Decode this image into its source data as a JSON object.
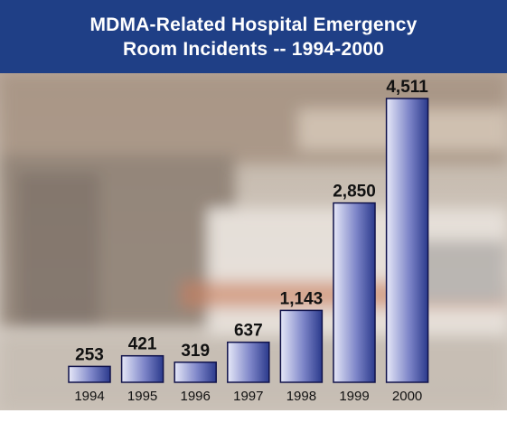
{
  "header": {
    "title_line1": "MDMA-Related Hospital Emergency",
    "title_line2": "Room Incidents -- 1994-2000"
  },
  "colors": {
    "title_bar": "#1f3f86",
    "bar_light": "#e6e8f8",
    "bar_dark": "#2b3a8c"
  },
  "chart_data": {
    "type": "bar",
    "title": "MDMA-Related Hospital Emergency Room Incidents -- 1994-2000",
    "categories": [
      "1994",
      "1995",
      "1996",
      "1997",
      "1998",
      "1999",
      "2000"
    ],
    "values": [
      253,
      421,
      319,
      637,
      1143,
      2850,
      4511
    ],
    "value_labels": [
      "253",
      "421",
      "319",
      "637",
      "1,143",
      "2,850",
      "4,511"
    ],
    "xlabel": "",
    "ylabel": "",
    "ylim": [
      0,
      4800
    ],
    "grid": false,
    "legend": "none"
  }
}
